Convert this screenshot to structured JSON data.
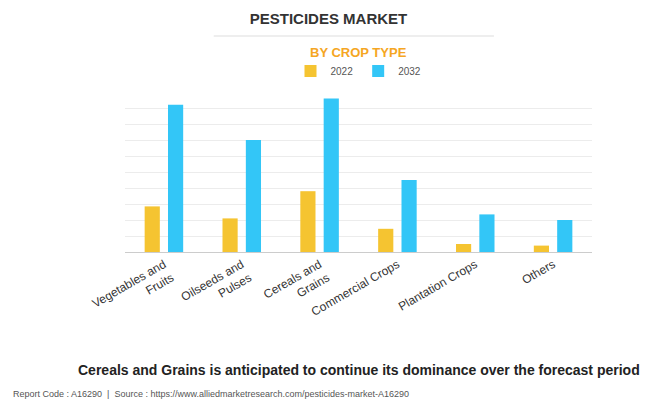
{
  "chart_data": {
    "type": "bar",
    "title": "PESTICIDES MARKET",
    "subtitle": "BY CROP TYPE",
    "caption": "Cereals and Grains is anticipated to continue its dominance over the forecast period",
    "source": "Report Code : A16290  |  Source : https://www.alliedmarketresearch.com/pesticides-market-A16290",
    "categories": [
      "Vegetables and Fruits",
      "Oilseeds and Pulses",
      "Cereals and Grains",
      "Commercial Crops",
      "Plantation Crops",
      "Others"
    ],
    "series": [
      {
        "name": "2022",
        "color": "#f5c431",
        "values": [
          2.85,
          2.1,
          3.8,
          1.45,
          0.5,
          0.4
        ]
      },
      {
        "name": "2032",
        "color": "#33c6f7",
        "values": [
          9.2,
          7.0,
          9.6,
          4.5,
          2.35,
          2.0
        ]
      }
    ],
    "ylim": [
      0,
      10
    ],
    "yticks": [
      0,
      1,
      2,
      3,
      4,
      5,
      6,
      7,
      8,
      9,
      10
    ],
    "grid": true,
    "legend": "top",
    "tick_labels": "x"
  }
}
